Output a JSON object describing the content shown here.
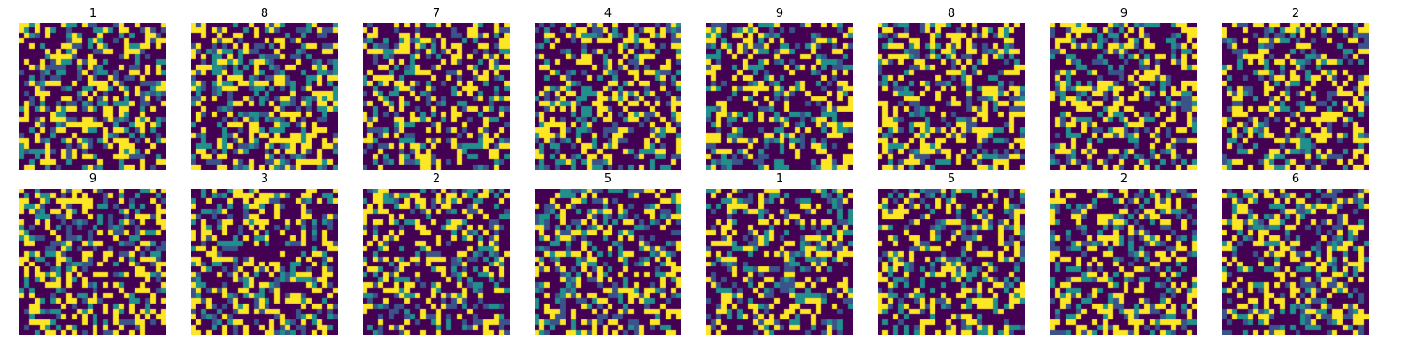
{
  "chart_data": {
    "type": "heatmap",
    "colormap": "viridis",
    "grid_size": 28,
    "value_range": [
      0,
      1
    ],
    "axes_visible": false,
    "colors": {
      "low": "#440154",
      "mid_low": "#3b528b",
      "mid_high": "#21908d",
      "high": "#fde725"
    },
    "rows": 2,
    "columns": 8,
    "panels": [
      {
        "title": "1"
      },
      {
        "title": "8"
      },
      {
        "title": "7"
      },
      {
        "title": "4"
      },
      {
        "title": "9"
      },
      {
        "title": "8"
      },
      {
        "title": "9"
      },
      {
        "title": "2"
      },
      {
        "title": "9"
      },
      {
        "title": "3"
      },
      {
        "title": "2"
      },
      {
        "title": "5"
      },
      {
        "title": "1"
      },
      {
        "title": "5"
      },
      {
        "title": "2"
      },
      {
        "title": "6"
      }
    ]
  }
}
